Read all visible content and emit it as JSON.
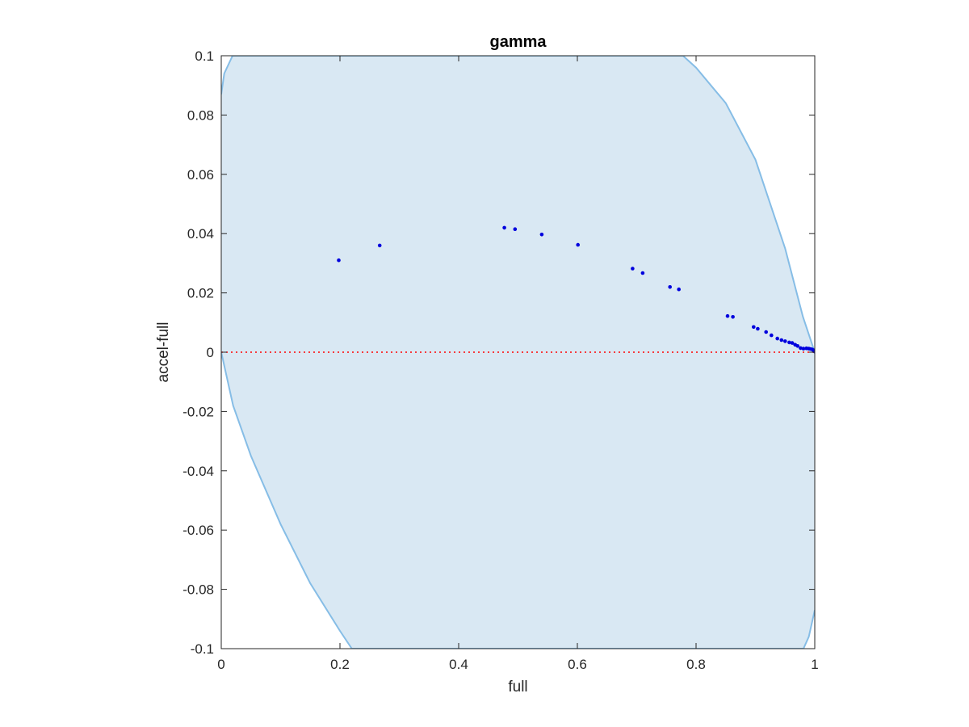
{
  "chart_data": {
    "type": "scatter",
    "title": "gamma",
    "xlabel": "full",
    "ylabel": "accel-full",
    "xlim": [
      0,
      1
    ],
    "ylim": [
      -0.1,
      0.1
    ],
    "x_ticks": [
      0,
      0.2,
      0.4,
      0.6,
      0.8,
      1
    ],
    "x_tick_labels": [
      "0",
      "0.2",
      "0.4",
      "0.6",
      "0.8",
      "1"
    ],
    "y_ticks": [
      -0.1,
      -0.08,
      -0.06,
      -0.04,
      -0.02,
      0,
      0.02,
      0.04,
      0.06,
      0.08,
      0.1
    ],
    "y_tick_labels": [
      "-0.1",
      "-0.08",
      "-0.06",
      "-0.04",
      "-0.02",
      "0",
      "0.02",
      "0.04",
      "0.06",
      "0.08",
      "0.1"
    ],
    "grid": false,
    "colors": {
      "points": "#0000dd",
      "reference_line": "#ff0000",
      "region_fill": "#d9e8f3",
      "region_edge": "#86bde6",
      "axes": "#262626"
    },
    "reference_line": {
      "y": 0,
      "style": "dotted"
    },
    "region": {
      "description_free": true,
      "upper": [
        [
          0.0,
          0.087
        ],
        [
          0.005,
          0.094
        ],
        [
          0.019,
          0.1
        ],
        [
          0.778,
          0.1
        ],
        [
          0.8,
          0.096
        ],
        [
          0.85,
          0.084
        ],
        [
          0.9,
          0.065
        ],
        [
          0.95,
          0.035
        ],
        [
          0.98,
          0.012
        ],
        [
          1.0,
          0.0
        ]
      ],
      "lower": [
        [
          0.0,
          0.0
        ],
        [
          0.02,
          -0.018
        ],
        [
          0.05,
          -0.035
        ],
        [
          0.1,
          -0.058
        ],
        [
          0.15,
          -0.078
        ],
        [
          0.2,
          -0.094
        ],
        [
          0.22,
          -0.1
        ],
        [
          0.981,
          -0.1
        ],
        [
          0.99,
          -0.096
        ],
        [
          1.0,
          -0.087
        ]
      ]
    },
    "series": [
      {
        "x": [
          0.198,
          0.267,
          0.477,
          0.495,
          0.54,
          0.601,
          0.693,
          0.71,
          0.756,
          0.771,
          0.853,
          0.862,
          0.897,
          0.904,
          0.918,
          0.927,
          0.937,
          0.944,
          0.95,
          0.957,
          0.962,
          0.967,
          0.971,
          0.976,
          0.981,
          0.986,
          0.99,
          0.993,
          0.996,
          0.998,
          1.0
        ],
        "y": [
          0.031,
          0.036,
          0.042,
          0.0415,
          0.0397,
          0.0362,
          0.0282,
          0.0267,
          0.022,
          0.0212,
          0.0122,
          0.0119,
          0.0085,
          0.0079,
          0.0068,
          0.0057,
          0.0046,
          0.0041,
          0.0037,
          0.0033,
          0.0031,
          0.0025,
          0.0021,
          0.0014,
          0.0012,
          0.0013,
          0.0012,
          0.0011,
          0.0009,
          0.0006,
          0.0002
        ]
      }
    ]
  }
}
